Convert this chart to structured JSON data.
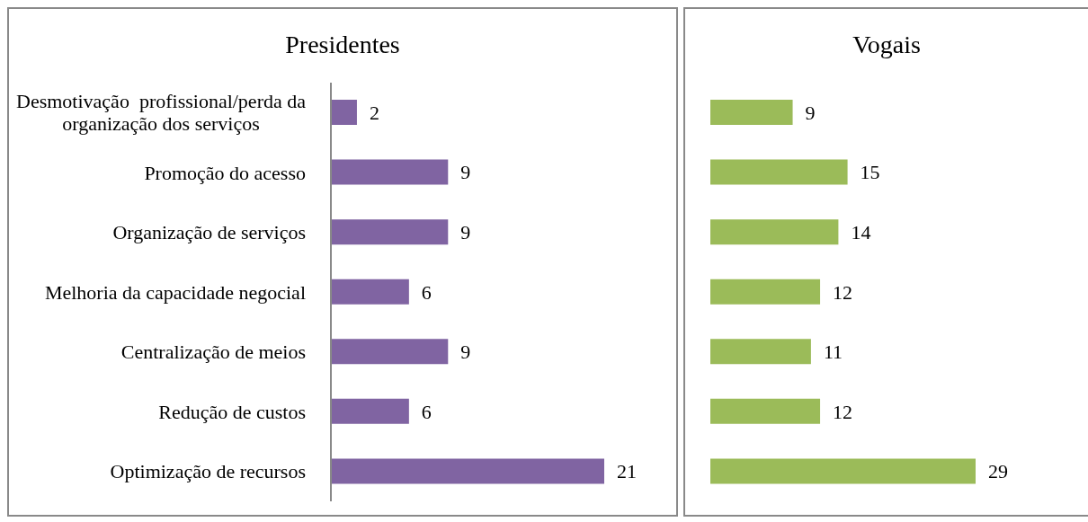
{
  "chart_data": [
    {
      "type": "bar",
      "orientation": "horizontal",
      "title": "Presidentes",
      "categories": [
        "Desmotivação  profissional/perda da organização dos serviços",
        "Promoção do acesso",
        "Organização de serviços",
        "Melhoria da capacidade negocial",
        "Centralização de meios",
        "Redução de custos",
        "Optimização de recursos"
      ],
      "values": [
        2,
        9,
        9,
        6,
        9,
        6,
        21
      ],
      "color": "#8064a2",
      "data_labels": true
    },
    {
      "type": "bar",
      "orientation": "horizontal",
      "title": "Vogais",
      "categories": [
        null,
        null,
        null,
        null,
        null,
        null,
        null
      ],
      "values": [
        9,
        15,
        14,
        12,
        11,
        12,
        29
      ],
      "color": "#9bbb59",
      "data_labels": true
    }
  ]
}
